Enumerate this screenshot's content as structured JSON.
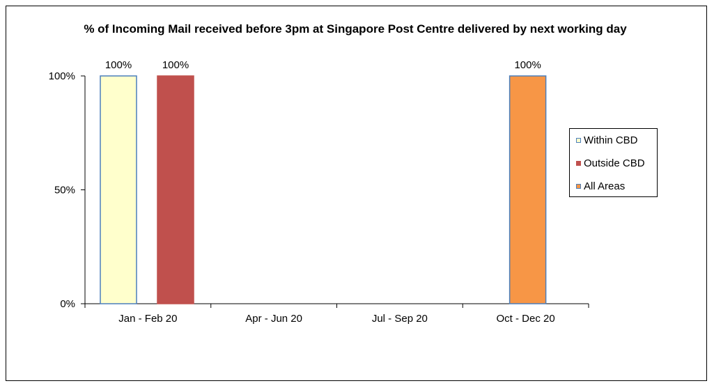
{
  "chart_data": {
    "type": "bar",
    "title": "% of Incoming Mail received before 3pm at Singapore Post Centre delivered by next working day",
    "categories": [
      "Jan - Feb 20",
      "Apr - Jun 20",
      "Jul - Sep 20",
      "Oct - Dec 20"
    ],
    "series": [
      {
        "name": "Within CBD",
        "values": [
          100,
          null,
          null,
          null
        ],
        "color": "#ffffcc",
        "border": "#4a7ebb"
      },
      {
        "name": "Outside CBD",
        "values": [
          100,
          null,
          null,
          null
        ],
        "color": "#c0504d",
        "border": "#c0504d"
      },
      {
        "name": "All Areas",
        "values": [
          null,
          null,
          null,
          100
        ],
        "color": "#f79646",
        "border": "#4a7ebb"
      }
    ],
    "data_labels": [
      "100%",
      "100%",
      "100%"
    ],
    "ylim": [
      0,
      100
    ],
    "yticks": [
      0,
      50,
      100
    ],
    "ytick_labels": [
      "0%",
      "50%",
      "100%"
    ],
    "xlabel": "",
    "ylabel": "",
    "legend_position": "right",
    "grid": false
  }
}
